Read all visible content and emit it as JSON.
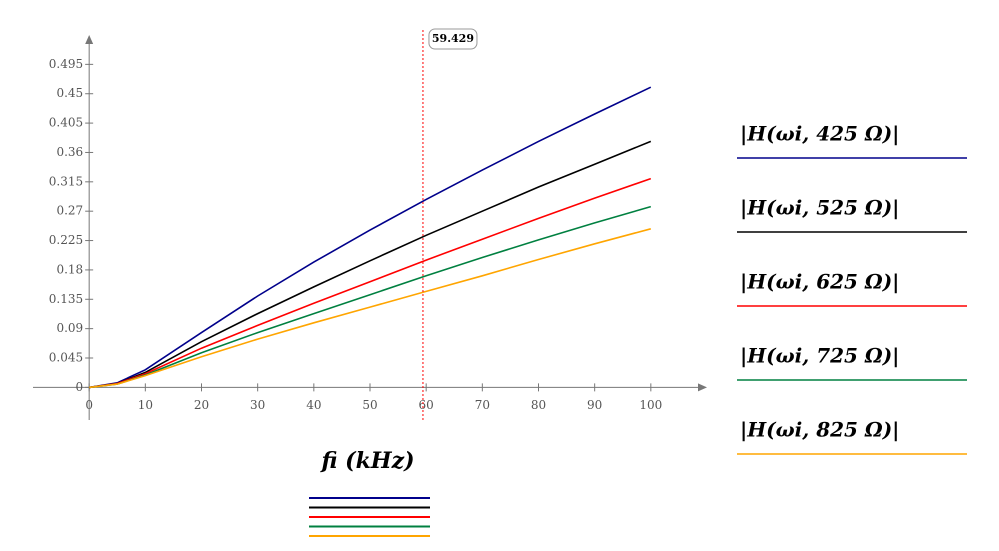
{
  "chart_data": {
    "type": "line",
    "x_label": "fi (kHz)",
    "x": [
      0,
      5,
      10,
      20,
      30,
      40,
      50,
      60,
      70,
      80,
      90,
      100
    ],
    "series": [
      {
        "name": "|H(ωi, 425 Ω)|",
        "color": "#00008b",
        "values": [
          0,
          0.007,
          0.027,
          0.084,
          0.14,
          0.192,
          0.241,
          0.288,
          0.333,
          0.377,
          0.419,
          0.46
        ]
      },
      {
        "name": "|H(ωi, 525 Ω)|",
        "color": "#000000",
        "values": [
          0,
          0.006,
          0.023,
          0.07,
          0.113,
          0.154,
          0.194,
          0.233,
          0.27,
          0.307,
          0.342,
          0.377
        ]
      },
      {
        "name": "|H(ωi, 625 Ω)|",
        "color": "#ff0000",
        "values": [
          0,
          0.006,
          0.021,
          0.06,
          0.095,
          0.129,
          0.162,
          0.195,
          0.227,
          0.259,
          0.29,
          0.32
        ]
      },
      {
        "name": "|H(ωi, 725 Ω)|",
        "color": "#008040",
        "values": [
          0,
          0.005,
          0.019,
          0.053,
          0.084,
          0.113,
          0.142,
          0.171,
          0.199,
          0.226,
          0.252,
          0.277
        ]
      },
      {
        "name": "|H(ωi, 825 Ω)|",
        "color": "#ffa500",
        "values": [
          0,
          0.005,
          0.018,
          0.047,
          0.074,
          0.099,
          0.123,
          0.147,
          0.171,
          0.196,
          0.22,
          0.243
        ]
      }
    ],
    "xlim": [
      -10,
      110
    ],
    "ylim": [
      -0.05,
      0.54
    ],
    "xticks": [
      0,
      10,
      20,
      30,
      40,
      50,
      60,
      70,
      80,
      90,
      100
    ],
    "yticks": [
      0,
      0.045,
      0.09,
      0.135,
      0.18,
      0.225,
      0.27,
      0.315,
      0.36,
      0.405,
      0.45,
      0.495
    ],
    "cursor_x": 59.429,
    "cursor_color": "#ff0000",
    "grid": false
  }
}
